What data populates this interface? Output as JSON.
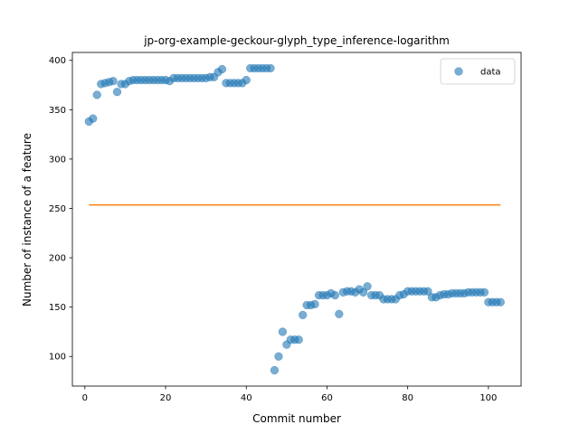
{
  "chart_data": {
    "type": "scatter",
    "title": "jp-org-example-geckour-glyph_type_inference-logarithm",
    "xlabel": "Commit number",
    "ylabel": "Number of instance of a feature",
    "xlim": [
      -3.1,
      108.1
    ],
    "ylim": [
      70,
      408
    ],
    "xticks": [
      0,
      20,
      40,
      60,
      80,
      100
    ],
    "yticks": [
      100,
      150,
      200,
      250,
      300,
      350,
      400
    ],
    "grid": false,
    "legend_position": "upper right",
    "series": [
      {
        "name": "data",
        "kind": "scatter",
        "color": "#1f77b4",
        "x": [
          1,
          2,
          3,
          4,
          5,
          6,
          7,
          8,
          9,
          10,
          11,
          12,
          13,
          14,
          15,
          16,
          17,
          18,
          19,
          20,
          21,
          22,
          23,
          24,
          25,
          26,
          27,
          28,
          29,
          30,
          31,
          32,
          33,
          34,
          35,
          36,
          37,
          38,
          39,
          40,
          41,
          42,
          43,
          44,
          45,
          46,
          47,
          48,
          49,
          50,
          51,
          52,
          53,
          54,
          55,
          56,
          57,
          58,
          59,
          60,
          61,
          62,
          63,
          64,
          65,
          66,
          67,
          68,
          69,
          70,
          71,
          72,
          73,
          74,
          75,
          76,
          77,
          78,
          79,
          80,
          81,
          82,
          83,
          84,
          85,
          86,
          87,
          88,
          89,
          90,
          91,
          92,
          93,
          94,
          95,
          96,
          97,
          98,
          99,
          100,
          101,
          102,
          103
        ],
        "y": [
          338,
          341,
          365,
          376,
          377,
          378,
          379,
          368,
          376,
          376,
          379,
          380,
          380,
          380,
          380,
          380,
          380,
          380,
          380,
          380,
          379,
          382,
          382,
          382,
          382,
          382,
          382,
          382,
          382,
          382,
          383,
          383,
          388,
          391,
          377,
          377,
          377,
          377,
          377,
          380,
          392,
          392,
          392,
          392,
          392,
          392,
          86,
          100,
          125,
          112,
          117,
          117,
          117,
          142,
          152,
          152,
          153,
          162,
          162,
          162,
          164,
          162,
          143,
          165,
          166,
          166,
          165,
          168,
          165,
          171,
          162,
          162,
          162,
          158,
          158,
          158,
          158,
          162,
          163,
          166,
          166,
          166,
          166,
          166,
          166,
          160,
          160,
          162,
          163,
          163,
          164,
          164,
          164,
          164,
          165,
          165,
          165,
          165,
          165,
          155,
          155,
          155,
          155
        ]
      },
      {
        "name": "",
        "kind": "line",
        "color": "#ff7f0e",
        "x": [
          1,
          103
        ],
        "y": [
          253.5,
          253.5
        ]
      }
    ]
  }
}
